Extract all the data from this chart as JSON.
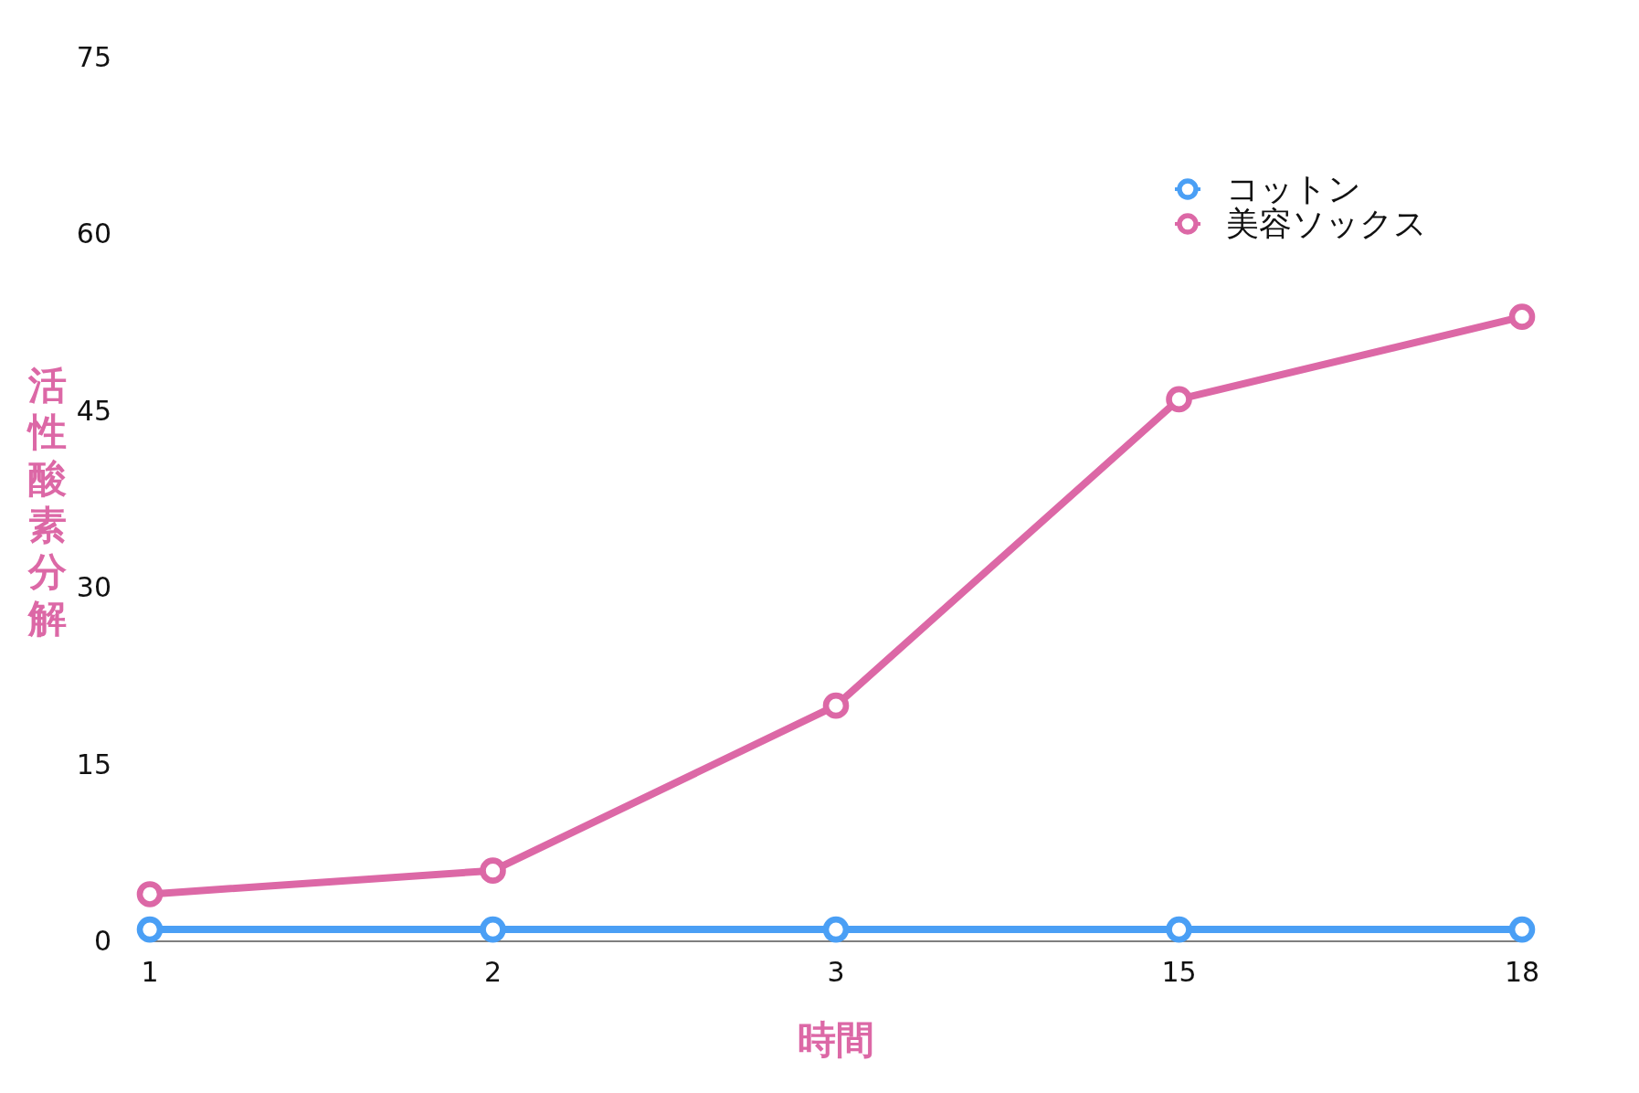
{
  "chart_data": {
    "type": "line",
    "xlabel": "時間",
    "ylabel": "活性酸素分解",
    "categories": [
      "1",
      "2",
      "3",
      "15",
      "18"
    ],
    "series": [
      {
        "name": "コットン",
        "color": "#4a9ff5",
        "values": [
          1,
          1,
          1,
          1,
          1
        ]
      },
      {
        "name": "美容ソックス",
        "color": "#dc68a6",
        "values": [
          4,
          6,
          20,
          46,
          53
        ]
      }
    ],
    "ylim": [
      0,
      75
    ],
    "yticks": [
      0,
      15,
      30,
      45,
      60,
      75
    ],
    "grid": false,
    "legend": "top right",
    "marker": "circle",
    "line_style": "solid"
  }
}
